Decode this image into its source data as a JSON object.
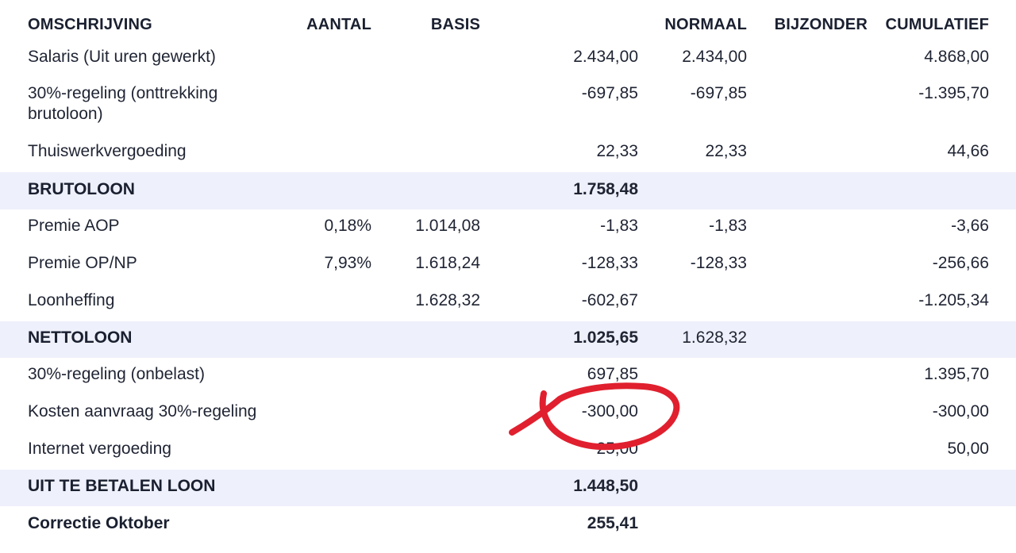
{
  "header": {
    "omschrijving": "OMSCHRIJVING",
    "aantal": "AANTAL",
    "basis": "BASIS",
    "normaal": "NORMAAL",
    "bijzonder": "BIJZONDER",
    "cumulatief": "CUMULATIEF"
  },
  "rows": [
    {
      "desc": "Salaris (Uit uren gewerkt)",
      "aantal": "",
      "basis": "",
      "amount": "2.434,00",
      "normaal": "2.434,00",
      "bijzonder": "",
      "cumulatief": "4.868,00"
    },
    {
      "desc": "30%-regeling (onttrekking brutoloon)",
      "aantal": "",
      "basis": "",
      "amount": "-697,85",
      "normaal": "-697,85",
      "bijzonder": "",
      "cumulatief": "-1.395,70"
    },
    {
      "desc": "Thuiswerkvergoeding",
      "aantal": "",
      "basis": "",
      "amount": "22,33",
      "normaal": "22,33",
      "bijzonder": "",
      "cumulatief": "44,66"
    },
    {
      "desc": "BRUTOLOON",
      "aantal": "",
      "basis": "",
      "amount": "1.758,48",
      "normaal": "",
      "bijzonder": "",
      "cumulatief": ""
    },
    {
      "desc": "Premie AOP",
      "aantal": "0,18%",
      "basis": "1.014,08",
      "amount": "-1,83",
      "normaal": "-1,83",
      "bijzonder": "",
      "cumulatief": "-3,66"
    },
    {
      "desc": "Premie OP/NP",
      "aantal": "7,93%",
      "basis": "1.618,24",
      "amount": "-128,33",
      "normaal": "-128,33",
      "bijzonder": "",
      "cumulatief": "-256,66"
    },
    {
      "desc": "Loonheffing",
      "aantal": "",
      "basis": "1.628,32",
      "amount": "-602,67",
      "normaal": "",
      "bijzonder": "",
      "cumulatief": "-1.205,34"
    },
    {
      "desc": "NETTOLOON",
      "aantal": "",
      "basis": "",
      "amount": "1.025,65",
      "normaal": "1.628,32",
      "bijzonder": "",
      "cumulatief": ""
    },
    {
      "desc": "30%-regeling (onbelast)",
      "aantal": "",
      "basis": "",
      "amount": "697,85",
      "normaal": "",
      "bijzonder": "",
      "cumulatief": "1.395,70"
    },
    {
      "desc": "Kosten aanvraag 30%-regeling",
      "aantal": "",
      "basis": "",
      "amount": "-300,00",
      "normaal": "",
      "bijzonder": "",
      "cumulatief": "-300,00"
    },
    {
      "desc": "Internet vergoeding",
      "aantal": "",
      "basis": "",
      "amount": "25,00",
      "normaal": "",
      "bijzonder": "",
      "cumulatief": "50,00"
    },
    {
      "desc": "UIT TE BETALEN LOON",
      "aantal": "",
      "basis": "",
      "amount": "1.448,50",
      "normaal": "",
      "bijzonder": "",
      "cumulatief": ""
    },
    {
      "desc": "Correctie Oktober",
      "aantal": "",
      "basis": "",
      "amount": "255,41",
      "normaal": "",
      "bijzonder": "",
      "cumulatief": ""
    }
  ],
  "annotation": {
    "color": "#e0202e"
  }
}
